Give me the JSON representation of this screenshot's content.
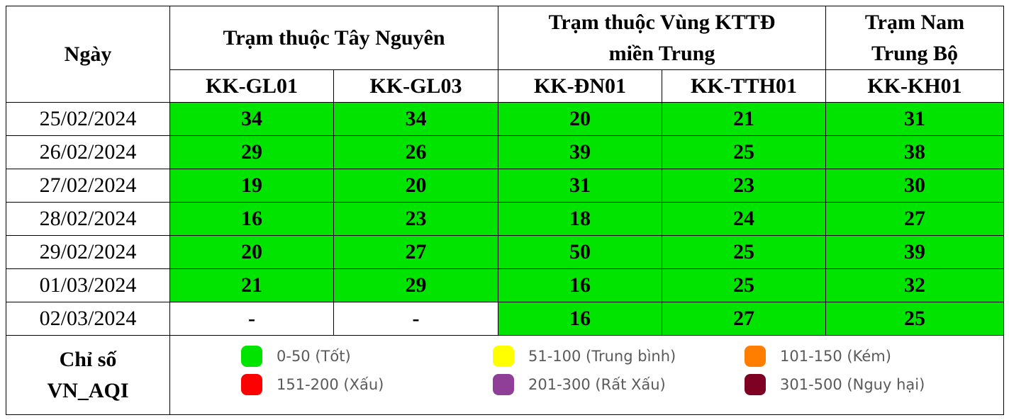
{
  "header": {
    "date_label": "Ngày",
    "groups": [
      {
        "label": "Trạm thuộc Tây Nguyên"
      },
      {
        "label": "Trạm thuộc Vùng KTTĐ miền Trung"
      },
      {
        "label": "Trạm Nam Trung Bộ"
      }
    ],
    "stations": [
      "KK-GL01",
      "KK-GL03",
      "KK-ĐN01",
      "KK-TTH01",
      "KK-KH01"
    ]
  },
  "rows": [
    {
      "date": "25/02/2024",
      "values": [
        "34",
        "34",
        "20",
        "21",
        "31"
      ]
    },
    {
      "date": "26/02/2024",
      "values": [
        "29",
        "26",
        "39",
        "25",
        "38"
      ]
    },
    {
      "date": "27/02/2024",
      "values": [
        "19",
        "20",
        "31",
        "23",
        "30"
      ]
    },
    {
      "date": "28/02/2024",
      "values": [
        "16",
        "23",
        "18",
        "24",
        "27"
      ]
    },
    {
      "date": "29/02/2024",
      "values": [
        "20",
        "27",
        "50",
        "25",
        "39"
      ]
    },
    {
      "date": "01/03/2024",
      "values": [
        "21",
        "29",
        "16",
        "25",
        "32"
      ]
    },
    {
      "date": "02/03/2024",
      "values": [
        "-",
        "-",
        "16",
        "27",
        "25"
      ]
    }
  ],
  "cell_colors": {
    "good": "#00e400",
    "none": "#ffffff"
  },
  "legend": {
    "label": "Chỉ số VN_AQI",
    "items": [
      {
        "text": "0-50 (Tốt)",
        "color": "#00e400"
      },
      {
        "text": "51-100 (Trung bình)",
        "color": "#ffff00"
      },
      {
        "text": "101-150 (Kém)",
        "color": "#ff7e00"
      },
      {
        "text": "151-200 (Xấu)",
        "color": "#ff0000"
      },
      {
        "text": "201-300 (Rất Xấu)",
        "color": "#8f3f97"
      },
      {
        "text": "301-500 (Nguy hại)",
        "color": "#7e0023"
      }
    ]
  }
}
